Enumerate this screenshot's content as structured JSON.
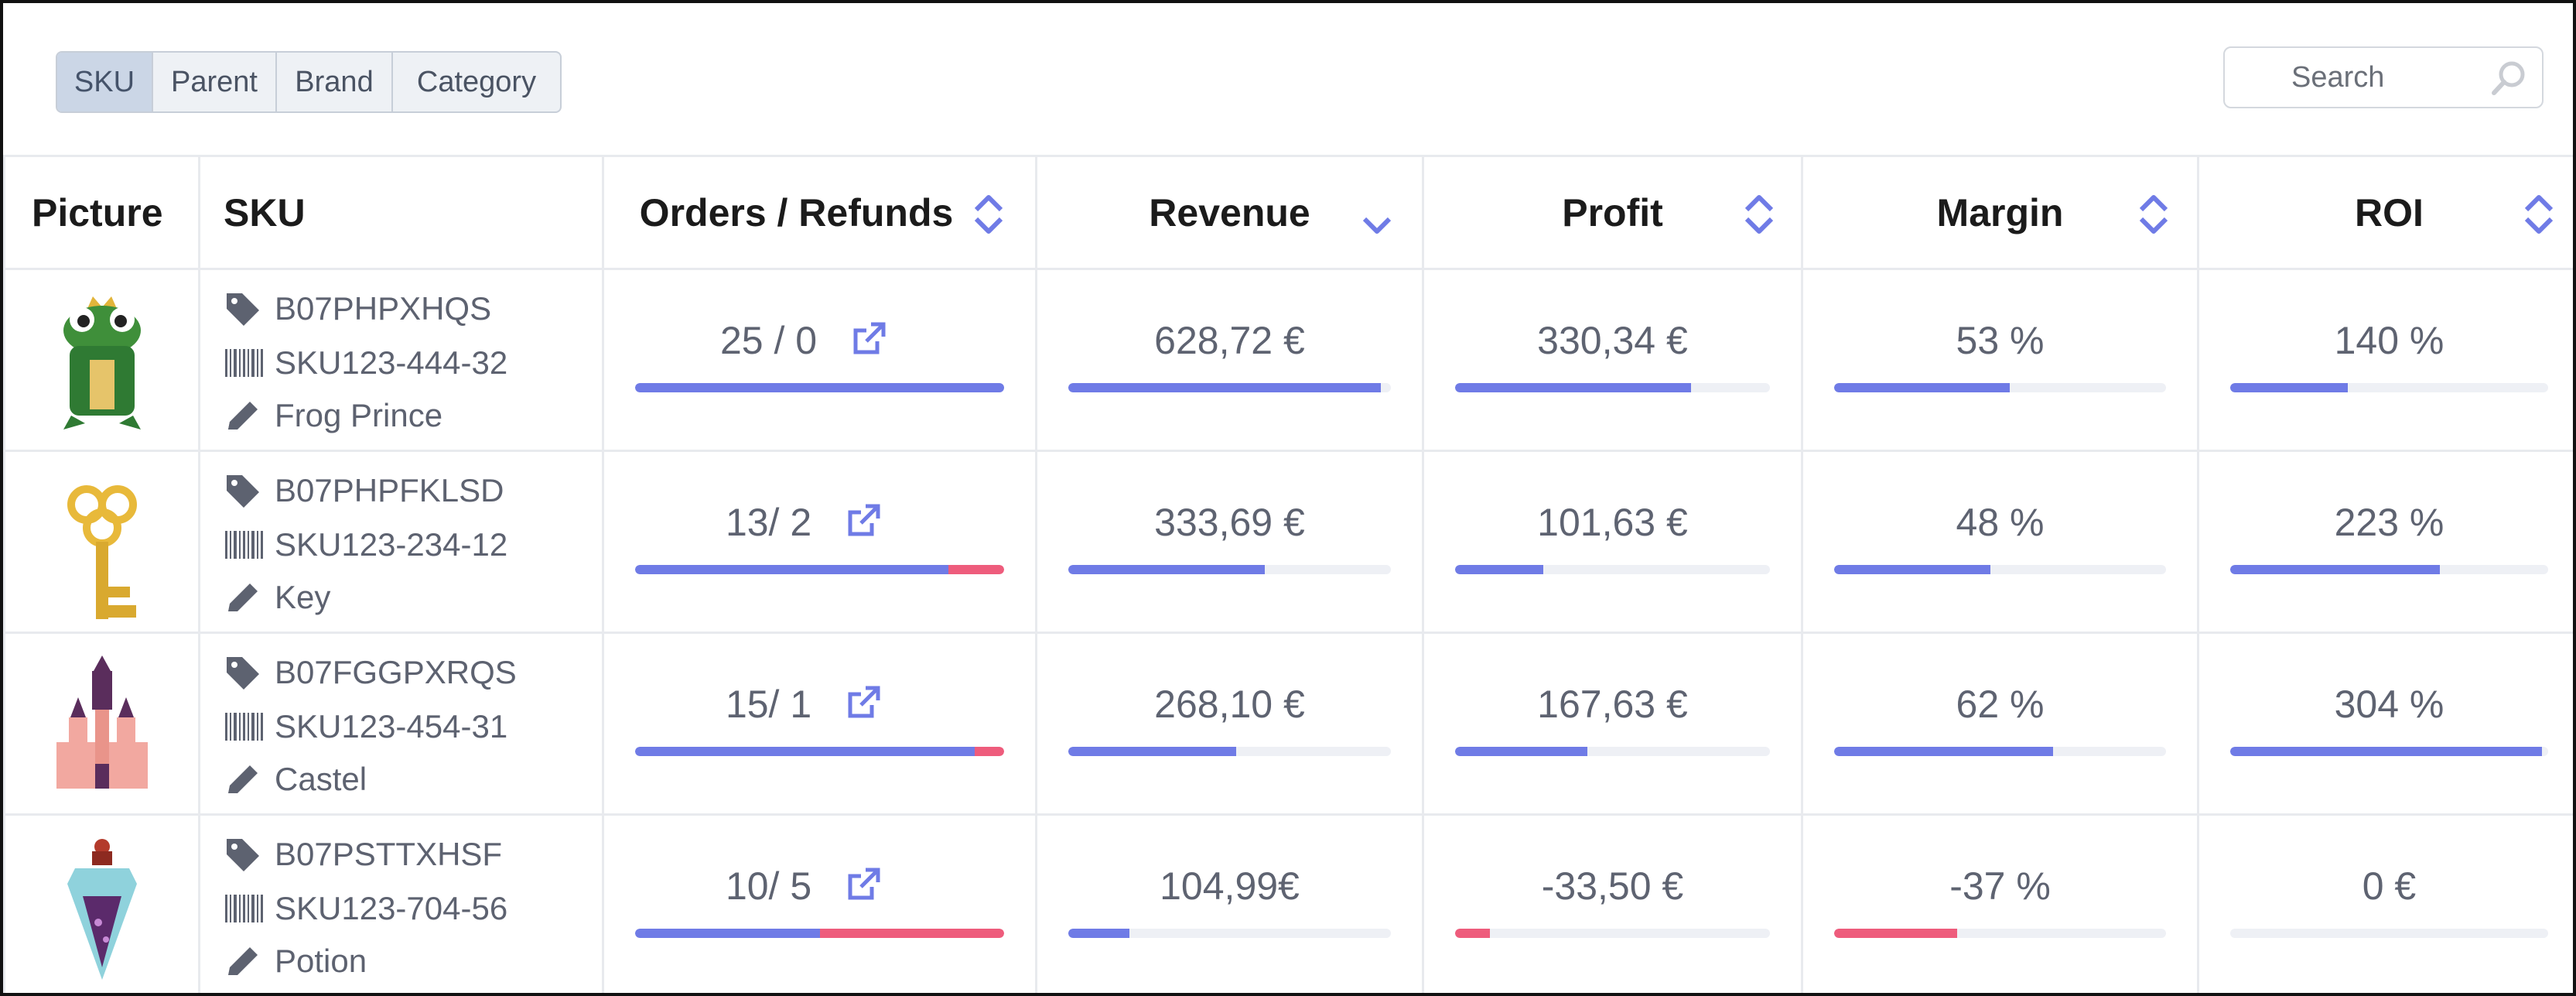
{
  "toolbar": {
    "segments": [
      {
        "label": "SKU",
        "active": true
      },
      {
        "label": "Parent",
        "active": false
      },
      {
        "label": "Brand",
        "active": false
      },
      {
        "label": "Category",
        "active": false
      }
    ],
    "search_placeholder": "Search"
  },
  "columns": {
    "picture": "Picture",
    "sku": "SKU",
    "orders": "Orders / Refunds",
    "revenue": "Revenue",
    "profit": "Profit",
    "margin": "Margin",
    "roi": "ROI"
  },
  "colors": {
    "accent": "#6f7be6",
    "negative": "#ee5c7c",
    "bar_track": "#eef0f5",
    "segment_active": "#cbd6e6"
  },
  "rows": [
    {
      "picture_icon": "frog-prince-icon",
      "asin": "B07PHPXHQS",
      "sku": "SKU123-444-32",
      "name": "Frog Prince",
      "orders": "25 / 0",
      "orders_share": 1.0,
      "refunds_share": 0.0,
      "revenue": "628,72 €",
      "revenue_level": 0.97,
      "revenue_negative": false,
      "profit": "330,34 €",
      "profit_level": 0.75,
      "profit_negative": false,
      "margin": "53 %",
      "margin_level": 0.53,
      "margin_negative": false,
      "roi": "140 %",
      "roi_level": 0.37,
      "roi_negative": false
    },
    {
      "picture_icon": "key-icon",
      "asin": "B07PHPFKLSD",
      "sku": "SKU123-234-12",
      "name": "Key",
      "orders": "13/ 2",
      "orders_share": 0.85,
      "refunds_share": 0.15,
      "revenue": "333,69 €",
      "revenue_level": 0.61,
      "revenue_negative": false,
      "profit": "101,63 €",
      "profit_level": 0.28,
      "profit_negative": false,
      "margin": "48 %",
      "margin_level": 0.47,
      "margin_negative": false,
      "roi": "223 %",
      "roi_level": 0.66,
      "roi_negative": false
    },
    {
      "picture_icon": "castle-icon",
      "asin": "B07FGGPXRQS",
      "sku": "SKU123-454-31",
      "name": "Castel",
      "orders": "15/ 1",
      "orders_share": 0.92,
      "refunds_share": 0.08,
      "revenue": "268,10 €",
      "revenue_level": 0.52,
      "revenue_negative": false,
      "profit": "167,63 €",
      "profit_level": 0.42,
      "profit_negative": false,
      "margin": "62 %",
      "margin_level": 0.66,
      "margin_negative": false,
      "roi": "304 %",
      "roi_level": 0.98,
      "roi_negative": false
    },
    {
      "picture_icon": "potion-icon",
      "asin": "B07PSTTXHSF",
      "sku": "SKU123-704-56",
      "name": "Potion",
      "orders": "10/ 5",
      "orders_share": 0.5,
      "refunds_share": 0.5,
      "revenue": "104,99€",
      "revenue_level": 0.19,
      "revenue_negative": false,
      "profit": "-33,50 €",
      "profit_level": 0.11,
      "profit_negative": true,
      "margin": "-37 %",
      "margin_level": 0.37,
      "margin_negative": true,
      "roi": "0 €",
      "roi_level": 0.0,
      "roi_negative": false
    }
  ]
}
